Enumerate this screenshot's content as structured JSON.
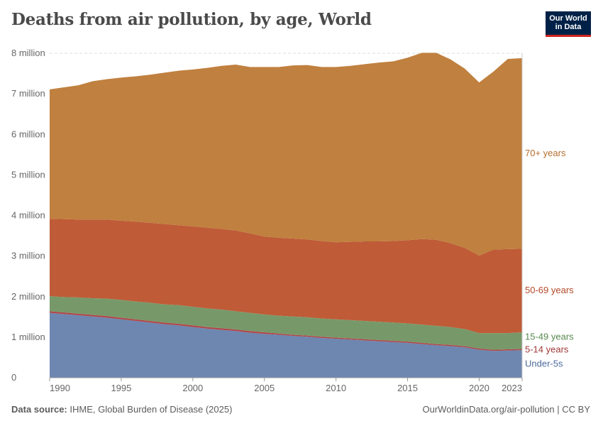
{
  "title": "Deaths from air pollution, by age, World",
  "logo": {
    "line1": "Our World",
    "line2": "in Data"
  },
  "footer": {
    "source_label": "Data source:",
    "source_text": "IHME, Global Burden of Disease (2025)",
    "link": "OurWorldinData.org/air-pollution | CC BY"
  },
  "chart_data": {
    "type": "area",
    "stacked": true,
    "title": "Deaths from air pollution, by age, World",
    "xlabel": "",
    "ylabel": "",
    "xlim": [
      1990,
      2023
    ],
    "ylim": [
      0,
      8000000
    ],
    "grid": true,
    "legend": "right (inline labels)",
    "x_ticks": [
      "1990",
      "1995",
      "2000",
      "2005",
      "2010",
      "2015",
      "2020",
      "2023"
    ],
    "x_tick_values": [
      1990,
      1995,
      2000,
      2005,
      2010,
      2015,
      2020,
      2023
    ],
    "y_ticks": [
      "0",
      "1 million",
      "2 million",
      "3 million",
      "4 million",
      "5 million",
      "6 million",
      "7 million",
      "8 million"
    ],
    "y_tick_values": [
      0,
      1000000,
      2000000,
      3000000,
      4000000,
      5000000,
      6000000,
      7000000,
      8000000
    ],
    "x": [
      1990,
      1991,
      1992,
      1993,
      1994,
      1995,
      1996,
      1997,
      1998,
      1999,
      2000,
      2001,
      2002,
      2003,
      2004,
      2005,
      2006,
      2007,
      2008,
      2009,
      2010,
      2011,
      2012,
      2013,
      2014,
      2015,
      2016,
      2017,
      2018,
      2019,
      2020,
      2021,
      2022,
      2023
    ],
    "series": [
      {
        "name": "Under-5s",
        "color": "#6d87b0",
        "label_color": "#4c6a9c",
        "values": [
          1600000,
          1570000,
          1540000,
          1510000,
          1480000,
          1440000,
          1400000,
          1360000,
          1320000,
          1290000,
          1250000,
          1210000,
          1180000,
          1150000,
          1110000,
          1080000,
          1060000,
          1030000,
          1010000,
          980000,
          960000,
          940000,
          920000,
          900000,
          880000,
          860000,
          830000,
          800000,
          780000,
          750000,
          690000,
          660000,
          670000,
          680000
        ]
      },
      {
        "name": "5-14 years",
        "color": "#b0464a",
        "label_color": "#a03838",
        "values": [
          40000,
          40000,
          40000,
          40000,
          40000,
          40000,
          40000,
          40000,
          40000,
          40000,
          40000,
          40000,
          40000,
          40000,
          40000,
          40000,
          30000,
          30000,
          30000,
          30000,
          30000,
          30000,
          30000,
          30000,
          30000,
          30000,
          30000,
          30000,
          30000,
          30000,
          30000,
          30000,
          30000,
          30000
        ]
      },
      {
        "name": "15-49 years",
        "color": "#77996a",
        "label_color": "#578a4e",
        "values": [
          370000,
          380000,
          400000,
          410000,
          430000,
          440000,
          440000,
          450000,
          450000,
          460000,
          460000,
          460000,
          460000,
          450000,
          450000,
          440000,
          440000,
          450000,
          450000,
          450000,
          450000,
          450000,
          450000,
          450000,
          450000,
          450000,
          450000,
          450000,
          440000,
          420000,
          380000,
          410000,
          400000,
          410000
        ]
      },
      {
        "name": "50-69 years",
        "color": "#bf5b37",
        "label_color": "#b44a2a",
        "values": [
          1910000,
          1920000,
          1920000,
          1940000,
          1950000,
          1950000,
          1970000,
          1970000,
          1980000,
          1970000,
          1980000,
          1990000,
          1990000,
          1990000,
          1960000,
          1920000,
          1920000,
          1920000,
          1920000,
          1910000,
          1900000,
          1930000,
          1960000,
          1980000,
          2010000,
          2050000,
          2110000,
          2120000,
          2070000,
          2000000,
          1910000,
          2060000,
          2070000,
          2060000
        ]
      },
      {
        "name": "70+ years",
        "color": "#c0803f",
        "label_color": "#b66e2c",
        "values": [
          3190000,
          3250000,
          3310000,
          3410000,
          3460000,
          3530000,
          3580000,
          3650000,
          3730000,
          3810000,
          3870000,
          3940000,
          4020000,
          4090000,
          4100000,
          4180000,
          4210000,
          4270000,
          4300000,
          4290000,
          4320000,
          4340000,
          4370000,
          4410000,
          4430000,
          4500000,
          4590000,
          4610000,
          4530000,
          4420000,
          4270000,
          4390000,
          4690000,
          4700000
        ]
      }
    ]
  }
}
